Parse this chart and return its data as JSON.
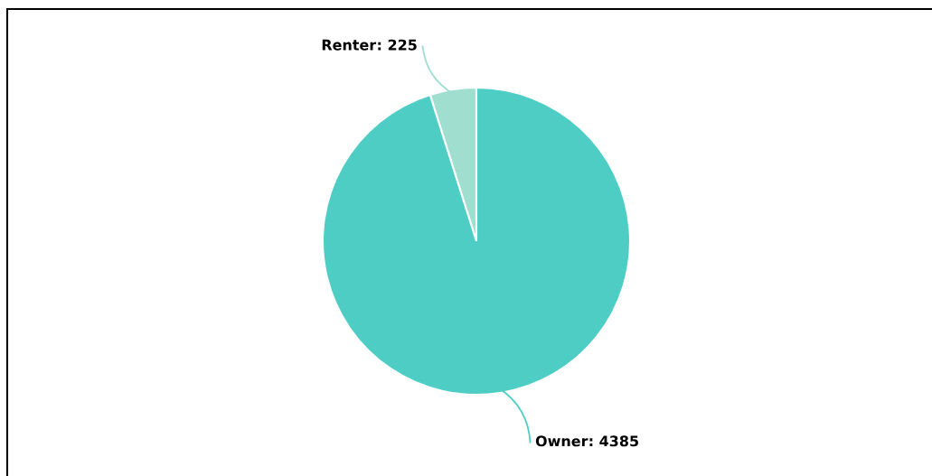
{
  "chart_data": {
    "type": "pie",
    "categories": [
      "Renter",
      "Owner"
    ],
    "values": [
      225,
      4385
    ],
    "value_labels": [
      ": 225",
      ": 4385"
    ],
    "colors": [
      "#a0dfd0",
      "#4ecdc4"
    ]
  }
}
